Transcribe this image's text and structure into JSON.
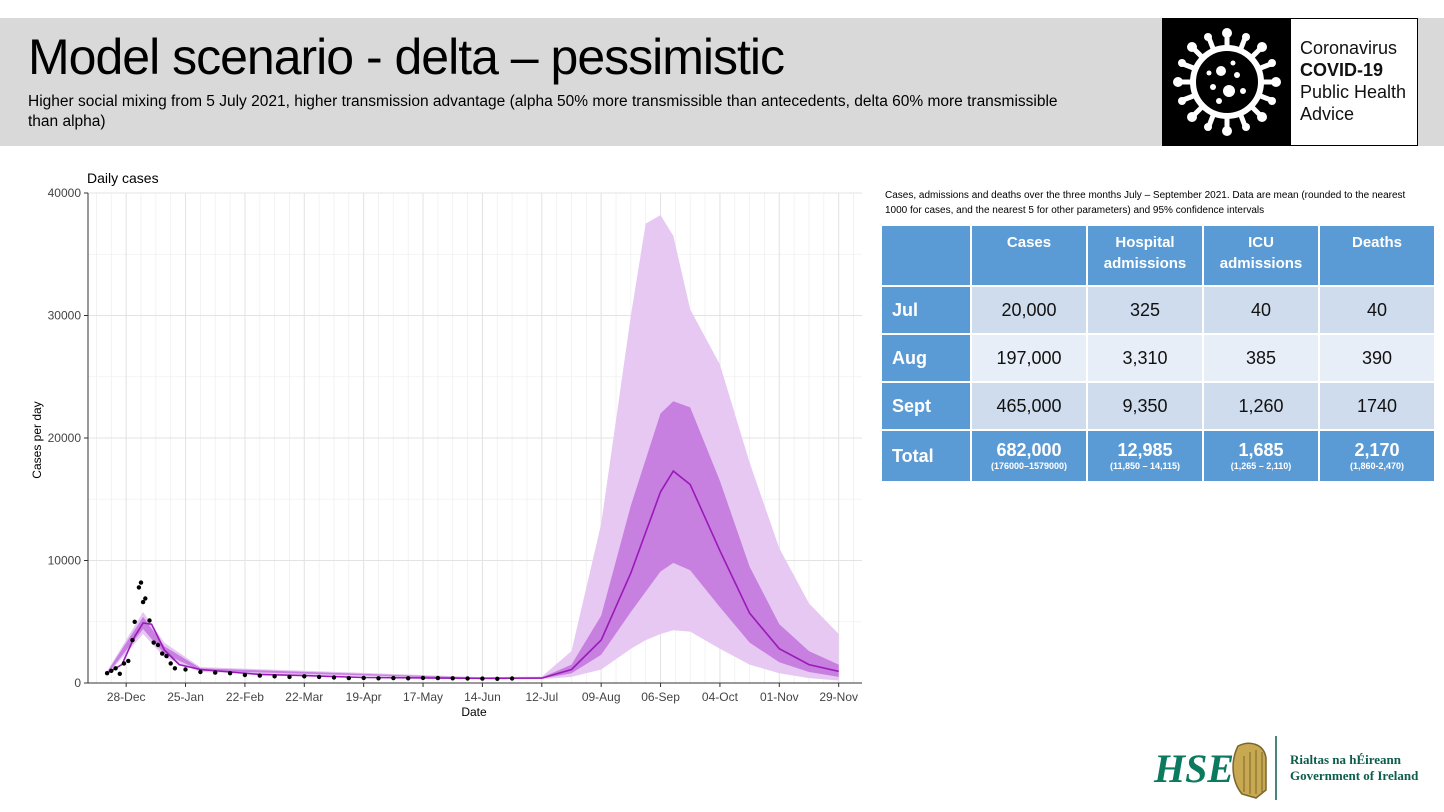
{
  "header": {
    "title": "Model scenario - delta – pessimistic",
    "subtitle": "Higher social mixing from 5 July 2021, higher transmission advantage (alpha 50% more transmissible than antecedents, delta 60% more transmissible than alpha)"
  },
  "covid_logo": {
    "line1": "Coronavirus",
    "line2": "COVID-19",
    "line3": "Public Health",
    "line4": "Advice",
    "icon": "coronavirus-icon"
  },
  "chart_data": {
    "type": "line",
    "title": "Daily cases",
    "xlabel": "Date",
    "ylabel": "Cases per day",
    "ylim": [
      0,
      40000
    ],
    "yticks": [
      0,
      10000,
      20000,
      30000,
      40000
    ],
    "xlim": [
      "2020-12-10",
      "2021-12-10"
    ],
    "xticks": [
      {
        "date": "2020-12-28",
        "label": "28-Dec"
      },
      {
        "date": "2021-01-25",
        "label": "25-Jan"
      },
      {
        "date": "2021-02-22",
        "label": "22-Feb"
      },
      {
        "date": "2021-03-22",
        "label": "22-Mar"
      },
      {
        "date": "2021-04-19",
        "label": "19-Apr"
      },
      {
        "date": "2021-05-17",
        "label": "17-May"
      },
      {
        "date": "2021-06-14",
        "label": "14-Jun"
      },
      {
        "date": "2021-07-12",
        "label": "12-Jul"
      },
      {
        "date": "2021-08-09",
        "label": "09-Aug"
      },
      {
        "date": "2021-09-06",
        "label": "06-Sep"
      },
      {
        "date": "2021-10-04",
        "label": "04-Oct"
      },
      {
        "date": "2021-11-01",
        "label": "01-Nov"
      },
      {
        "date": "2021-11-29",
        "label": "29-Nov"
      }
    ],
    "grid": true,
    "series": [
      {
        "kind": "mean",
        "color": "#9a1ab8",
        "points": [
          [
            "2020-12-19",
            800
          ],
          [
            "2020-12-26",
            1500
          ],
          [
            "2021-01-01",
            3800
          ],
          [
            "2021-01-05",
            4900
          ],
          [
            "2021-01-09",
            4800
          ],
          [
            "2021-01-15",
            2700
          ],
          [
            "2021-01-22",
            1500
          ],
          [
            "2021-02-01",
            1100
          ],
          [
            "2021-02-15",
            900
          ],
          [
            "2021-03-01",
            700
          ],
          [
            "2021-03-22",
            600
          ],
          [
            "2021-04-19",
            450
          ],
          [
            "2021-05-17",
            420
          ],
          [
            "2021-06-14",
            380
          ],
          [
            "2021-07-12",
            400
          ],
          [
            "2021-07-26",
            1100
          ],
          [
            "2021-08-09",
            3500
          ],
          [
            "2021-08-23",
            9000
          ],
          [
            "2021-09-06",
            15600
          ],
          [
            "2021-09-12",
            17300
          ],
          [
            "2021-09-20",
            16200
          ],
          [
            "2021-10-04",
            10800
          ],
          [
            "2021-10-18",
            5700
          ],
          [
            "2021-11-01",
            2800
          ],
          [
            "2021-11-15",
            1500
          ],
          [
            "2021-11-29",
            950
          ]
        ]
      },
      {
        "kind": "band-inner",
        "color": "#c77fe0",
        "points": [
          [
            "2020-12-19",
            700,
            900
          ],
          [
            "2021-01-05",
            4400,
            5400
          ],
          [
            "2021-01-15",
            2400,
            3000
          ],
          [
            "2021-02-01",
            1000,
            1200
          ],
          [
            "2021-06-14",
            350,
            420
          ],
          [
            "2021-07-12",
            360,
            450
          ],
          [
            "2021-07-26",
            800,
            1500
          ],
          [
            "2021-08-09",
            2300,
            5500
          ],
          [
            "2021-08-23",
            5800,
            14500
          ],
          [
            "2021-09-06",
            9100,
            22000
          ],
          [
            "2021-09-12",
            9800,
            23000
          ],
          [
            "2021-09-20",
            9200,
            22500
          ],
          [
            "2021-10-04",
            6200,
            16500
          ],
          [
            "2021-10-18",
            3300,
            9500
          ],
          [
            "2021-11-01",
            1700,
            4800
          ],
          [
            "2021-11-15",
            900,
            2600
          ],
          [
            "2021-11-29",
            500,
            1500
          ]
        ]
      },
      {
        "kind": "band-outer",
        "color": "#e6c8f2",
        "points": [
          [
            "2020-12-19",
            650,
            950
          ],
          [
            "2021-01-05",
            4000,
            5800
          ],
          [
            "2021-01-15",
            2100,
            3300
          ],
          [
            "2021-02-01",
            900,
            1300
          ],
          [
            "2021-06-14",
            300,
            480
          ],
          [
            "2021-07-12",
            320,
            520
          ],
          [
            "2021-07-26",
            500,
            2600
          ],
          [
            "2021-08-09",
            1100,
            13000
          ],
          [
            "2021-08-23",
            2800,
            30000
          ],
          [
            "2021-08-30",
            3500,
            37500
          ],
          [
            "2021-09-06",
            4000,
            38200
          ],
          [
            "2021-09-12",
            4300,
            36500
          ],
          [
            "2021-09-20",
            4200,
            30500
          ],
          [
            "2021-10-04",
            2800,
            26000
          ],
          [
            "2021-10-18",
            1500,
            18000
          ],
          [
            "2021-11-01",
            800,
            11000
          ],
          [
            "2021-11-15",
            400,
            6500
          ],
          [
            "2021-11-29",
            200,
            4000
          ]
        ]
      },
      {
        "kind": "observed",
        "color": "#000000",
        "points": [
          [
            "2020-12-19",
            800
          ],
          [
            "2020-12-21",
            1000
          ],
          [
            "2020-12-23",
            1200
          ],
          [
            "2020-12-25",
            750
          ],
          [
            "2020-12-27",
            1600
          ],
          [
            "2020-12-29",
            1800
          ],
          [
            "2020-12-31",
            3500
          ],
          [
            "2021-01-01",
            5000
          ],
          [
            "2021-01-03",
            7800
          ],
          [
            "2021-01-04",
            8200
          ],
          [
            "2021-01-05",
            6600
          ],
          [
            "2021-01-06",
            6900
          ],
          [
            "2021-01-08",
            5100
          ],
          [
            "2021-01-10",
            3300
          ],
          [
            "2021-01-12",
            3100
          ],
          [
            "2021-01-14",
            2400
          ],
          [
            "2021-01-16",
            2200
          ],
          [
            "2021-01-18",
            1600
          ],
          [
            "2021-01-20",
            1200
          ],
          [
            "2021-01-25",
            1100
          ],
          [
            "2021-02-01",
            900
          ],
          [
            "2021-02-08",
            850
          ],
          [
            "2021-02-15",
            800
          ],
          [
            "2021-02-22",
            650
          ],
          [
            "2021-03-01",
            600
          ],
          [
            "2021-03-08",
            550
          ],
          [
            "2021-03-15",
            500
          ],
          [
            "2021-03-22",
            550
          ],
          [
            "2021-03-29",
            500
          ],
          [
            "2021-04-05",
            450
          ],
          [
            "2021-04-12",
            400
          ],
          [
            "2021-04-19",
            420
          ],
          [
            "2021-04-26",
            380
          ],
          [
            "2021-05-03",
            400
          ],
          [
            "2021-05-10",
            380
          ],
          [
            "2021-05-17",
            420
          ],
          [
            "2021-05-24",
            400
          ],
          [
            "2021-05-31",
            380
          ],
          [
            "2021-06-07",
            370
          ],
          [
            "2021-06-14",
            360
          ],
          [
            "2021-06-21",
            340
          ],
          [
            "2021-06-28",
            370
          ]
        ]
      }
    ]
  },
  "table": {
    "note": "Cases, admissions and deaths over the three months July – September 2021. Data are mean (rounded to the nearest 1000 for cases, and the nearest 5 for other parameters) and 95% confidence intervals",
    "headers": [
      "",
      "Cases",
      "Hospital admissions",
      "ICU admissions",
      "Deaths"
    ],
    "rows": [
      {
        "label": "Jul",
        "values": [
          "20,000",
          "325",
          "40",
          "40"
        ]
      },
      {
        "label": "Aug",
        "values": [
          "197,000",
          "3,310",
          "385",
          "390"
        ]
      },
      {
        "label": "Sept",
        "values": [
          "465,000",
          "9,350",
          "1,260",
          "1740"
        ]
      }
    ],
    "total": {
      "label": "Total",
      "values": [
        "682,000",
        "12,985",
        "1,685",
        "2,170"
      ],
      "ci": [
        "(176000–1579000)",
        "(11,850 – 14,115)",
        "(1,265 – 2,110)",
        "(1,860-2,470)"
      ]
    }
  },
  "footer_logos": {
    "hse": "HSE",
    "goi_line1": "Rialtas na hÉireann",
    "goi_line2": "Government of Ireland",
    "harp_icon": "harp-icon"
  }
}
